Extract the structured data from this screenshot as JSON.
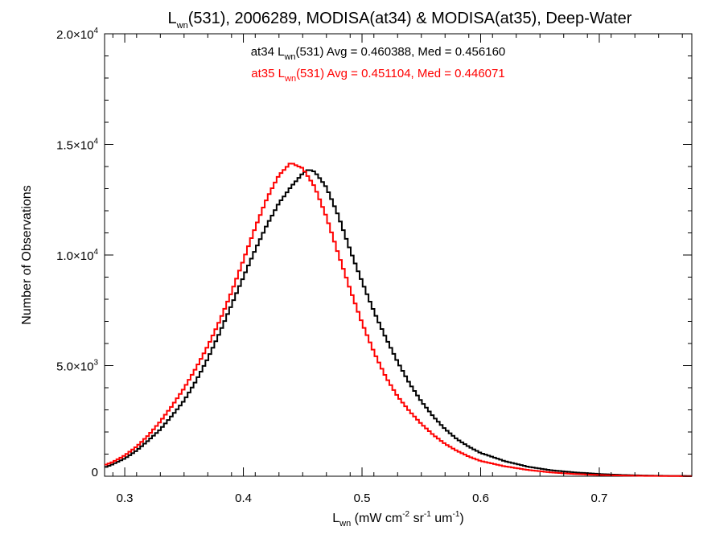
{
  "chart_data": {
    "type": "line",
    "title": {
      "pre": "L",
      "sub": "wn",
      "post": "(531), 2006289, MODISA(at34) & MODISA(at35), Deep-Water"
    },
    "xlabel": {
      "pre": "L",
      "sub": "wn",
      "mid1": " (mW cm",
      "sup1": "-2",
      "mid2": " sr",
      "sup2": "-1",
      "mid3": " um",
      "sup3": "-1",
      "post": ")"
    },
    "ylabel": "Number of Observations",
    "xlim": [
      0.283,
      0.778
    ],
    "ylim": [
      0,
      20000
    ],
    "x_ticks": [
      {
        "value": 0.3,
        "label": "0.3"
      },
      {
        "value": 0.4,
        "label": "0.4"
      },
      {
        "value": 0.5,
        "label": "0.5"
      },
      {
        "value": 0.6,
        "label": "0.6"
      },
      {
        "value": 0.7,
        "label": "0.7"
      }
    ],
    "y_ticks": [
      {
        "value": 0,
        "mant": "0",
        "exp": ""
      },
      {
        "value": 5000,
        "mant": "5.0×10",
        "exp": "3"
      },
      {
        "value": 10000,
        "mant": "1.0×10",
        "exp": "4"
      },
      {
        "value": 15000,
        "mant": "1.5×10",
        "exp": "4"
      },
      {
        "value": 20000,
        "mant": "2.0×10",
        "exp": "4"
      }
    ],
    "step_style": "histogram",
    "series": [
      {
        "key": "at34",
        "color": "#000000",
        "legend": {
          "pre": "at34 L",
          "sub": "wn",
          "post": "(531) Avg = 0.460388, Med = 0.456160"
        },
        "x": [
          0.283,
          0.29,
          0.3,
          0.31,
          0.32,
          0.33,
          0.34,
          0.35,
          0.36,
          0.37,
          0.38,
          0.39,
          0.4,
          0.41,
          0.42,
          0.43,
          0.44,
          0.45,
          0.455,
          0.46,
          0.47,
          0.48,
          0.49,
          0.5,
          0.51,
          0.52,
          0.53,
          0.54,
          0.55,
          0.56,
          0.57,
          0.58,
          0.59,
          0.6,
          0.62,
          0.64,
          0.66,
          0.68,
          0.7,
          0.72,
          0.74,
          0.76,
          0.778
        ],
        "y": [
          400,
          550,
          800,
          1150,
          1600,
          2100,
          2750,
          3450,
          4350,
          5350,
          6450,
          7650,
          8900,
          10200,
          11450,
          12500,
          13200,
          13700,
          13800,
          13650,
          12900,
          11700,
          10250,
          8900,
          7550,
          6300,
          5150,
          4150,
          3350,
          2700,
          2150,
          1700,
          1350,
          1050,
          680,
          430,
          270,
          170,
          100,
          55,
          30,
          15,
          10
        ]
      },
      {
        "key": "at35",
        "color": "#ff0000",
        "legend": {
          "pre": "at35 L",
          "sub": "wn",
          "post": "(531) Avg = 0.451104, Med = 0.446071"
        },
        "x": [
          0.283,
          0.29,
          0.3,
          0.31,
          0.32,
          0.33,
          0.34,
          0.35,
          0.36,
          0.37,
          0.38,
          0.39,
          0.4,
          0.41,
          0.42,
          0.43,
          0.44,
          0.45,
          0.46,
          0.47,
          0.48,
          0.49,
          0.5,
          0.51,
          0.52,
          0.53,
          0.54,
          0.55,
          0.56,
          0.57,
          0.58,
          0.59,
          0.6,
          0.62,
          0.64,
          0.66,
          0.68,
          0.7,
          0.72,
          0.74,
          0.76,
          0.778
        ],
        "y": [
          500,
          650,
          950,
          1350,
          1850,
          2450,
          3150,
          3950,
          4900,
          5950,
          7100,
          8350,
          9700,
          11100,
          12450,
          13600,
          14300,
          14100,
          13200,
          11700,
          9950,
          8350,
          6900,
          5650,
          4550,
          3650,
          2950,
          2350,
          1850,
          1450,
          1150,
          900,
          700,
          450,
          280,
          170,
          100,
          55,
          30,
          15,
          8,
          5
        ]
      }
    ]
  }
}
